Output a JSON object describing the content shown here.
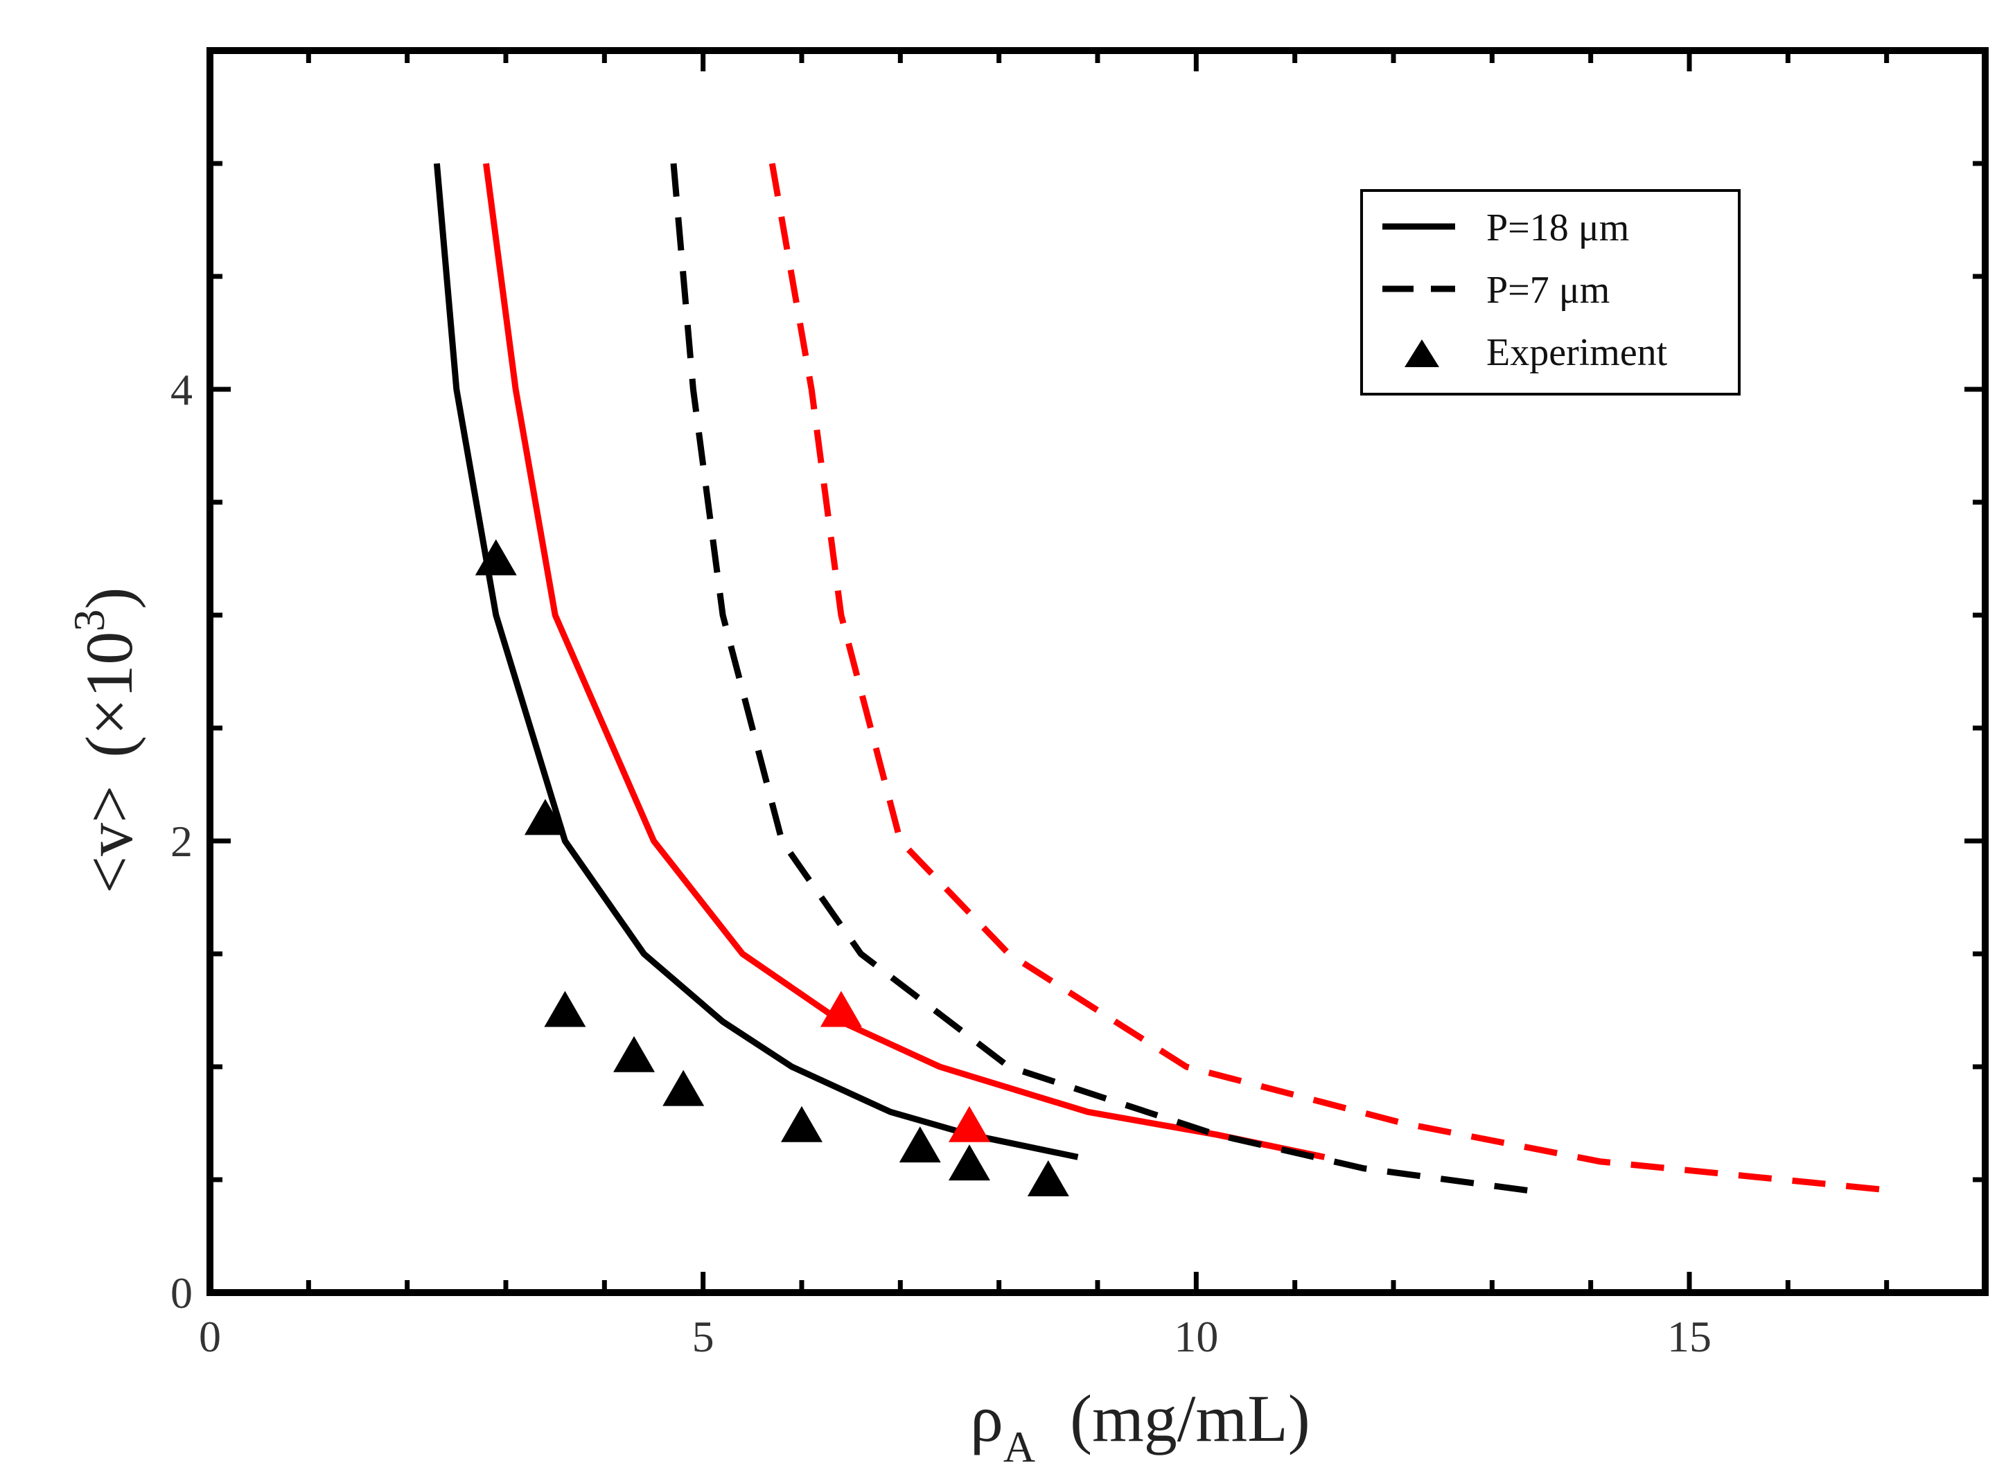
{
  "chart_data": {
    "type": "line",
    "title": "",
    "xlabel": {
      "symbol": "ρ",
      "subscript": "A",
      "units": "(mg/mL)"
    },
    "ylabel": {
      "symbol": "<v>",
      "multiplier": "(×10",
      "exponent": "3",
      "close": ")"
    },
    "xlim": [
      0,
      18
    ],
    "ylim": [
      0,
      5.5
    ],
    "x_ticks": [
      {
        "value": 0,
        "label": "0"
      },
      {
        "value": 5,
        "label": "5"
      },
      {
        "value": 10,
        "label": "10"
      },
      {
        "value": 15,
        "label": "15"
      }
    ],
    "y_ticks": [
      {
        "value": 0,
        "label": "0"
      },
      {
        "value": 2,
        "label": "2"
      },
      {
        "value": 4,
        "label": "4"
      }
    ],
    "grid": false,
    "legend": {
      "placement": "top-right",
      "entries": [
        {
          "label": "P=18 μm",
          "style": "solid"
        },
        {
          "label": "P=7 μm",
          "style": "dashed"
        },
        {
          "label": "Experiment",
          "style": "triangle"
        }
      ]
    },
    "series": [
      {
        "name": "P=18 μm (black)",
        "style": "solid",
        "color": "#000000",
        "x": [
          2.3,
          2.5,
          2.9,
          3.6,
          4.4,
          5.2,
          5.9,
          6.9,
          7.7,
          8.8
        ],
        "y": [
          5.0,
          4.0,
          3.0,
          2.0,
          1.5,
          1.2,
          1.0,
          0.8,
          0.7,
          0.6
        ]
      },
      {
        "name": "P=18 μm (red)",
        "style": "solid",
        "color": "#ff0000",
        "x": [
          2.8,
          3.1,
          3.5,
          4.5,
          5.4,
          6.4,
          7.4,
          8.9,
          10.2,
          11.3
        ],
        "y": [
          5.0,
          4.0,
          3.0,
          2.0,
          1.5,
          1.2,
          1.0,
          0.8,
          0.7,
          0.6
        ]
      },
      {
        "name": "P=7 μm (black)",
        "style": "dashed",
        "color": "#000000",
        "x": [
          4.7,
          4.9,
          5.2,
          5.8,
          6.6,
          8.1,
          10.2,
          11.7,
          13.4
        ],
        "y": [
          5.0,
          4.0,
          3.0,
          2.0,
          1.5,
          1.0,
          0.7,
          0.55,
          0.45
        ]
      },
      {
        "name": "P=7 μm (red)",
        "style": "dashed",
        "color": "#ff0000",
        "x": [
          5.7,
          6.1,
          6.4,
          7.0,
          8.1,
          9.9,
          12.1,
          14.1,
          17.1
        ],
        "y": [
          5.0,
          4.0,
          3.0,
          2.0,
          1.5,
          1.0,
          0.75,
          0.58,
          0.45
        ]
      }
    ],
    "experiment": [
      {
        "x": 2.9,
        "y": 3.25,
        "color": "#000000"
      },
      {
        "x": 3.4,
        "y": 2.1,
        "color": "#000000"
      },
      {
        "x": 3.6,
        "y": 1.25,
        "color": "#000000"
      },
      {
        "x": 4.3,
        "y": 1.05,
        "color": "#000000"
      },
      {
        "x": 4.8,
        "y": 0.9,
        "color": "#000000"
      },
      {
        "x": 6.0,
        "y": 0.74,
        "color": "#000000"
      },
      {
        "x": 7.2,
        "y": 0.65,
        "color": "#000000"
      },
      {
        "x": 7.7,
        "y": 0.57,
        "color": "#000000"
      },
      {
        "x": 8.5,
        "y": 0.5,
        "color": "#000000"
      },
      {
        "x": 6.4,
        "y": 1.25,
        "color": "#ff0000"
      },
      {
        "x": 7.7,
        "y": 0.74,
        "color": "#ff0000"
      }
    ]
  }
}
